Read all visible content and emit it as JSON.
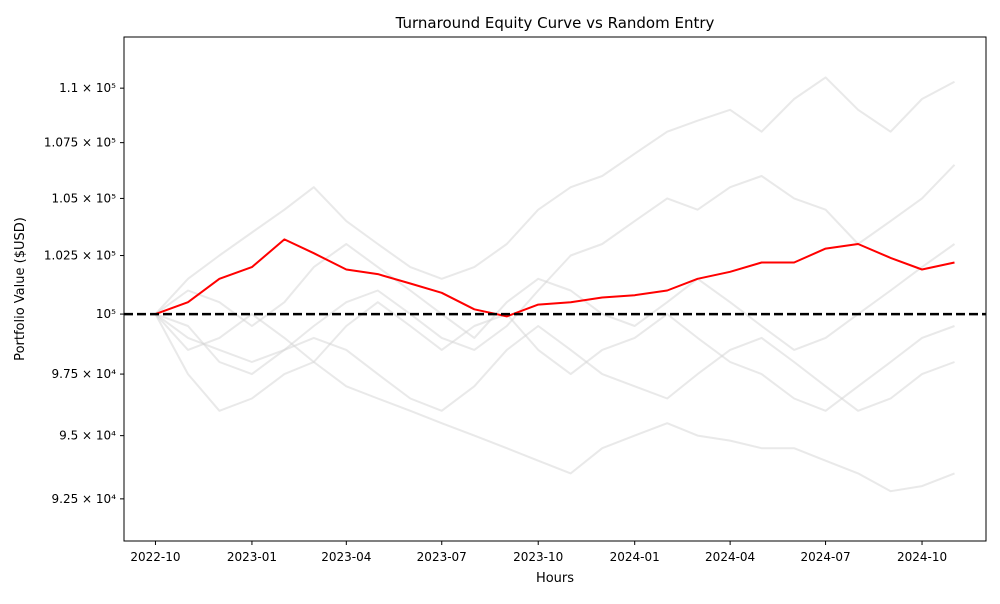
{
  "chart_data": {
    "type": "line",
    "title": "Turnaround Equity Curve vs Random Entry",
    "x_label": "Hours",
    "y_label": "Portfolio Value ($USD)",
    "y_scale": "log",
    "grid": false,
    "reference_line": 100000,
    "x": [
      "2022-10",
      "2022-11",
      "2022-12",
      "2023-01",
      "2023-02",
      "2023-03",
      "2023-04",
      "2023-05",
      "2023-06",
      "2023-07",
      "2023-08",
      "2023-09",
      "2023-10",
      "2023-11",
      "2023-12",
      "2024-01",
      "2024-02",
      "2024-03",
      "2024-04",
      "2024-05",
      "2024-06",
      "2024-07",
      "2024-08",
      "2024-09",
      "2024-10",
      "2024-11"
    ],
    "xlim": [
      "2022-09",
      "2024-12"
    ],
    "xticks": [
      "2022-10",
      "2023-01",
      "2023-04",
      "2023-07",
      "2023-10",
      "2024-01",
      "2024-04",
      "2024-07",
      "2024-10"
    ],
    "ylim": [
      90870,
      112400
    ],
    "yticks": [
      {
        "value": 92500,
        "label": "9.25 × 10⁴"
      },
      {
        "value": 95000,
        "label": "9.5 × 10⁴"
      },
      {
        "value": 97500,
        "label": "9.75 × 10⁴"
      },
      {
        "value": 100000,
        "label": "10⁵"
      },
      {
        "value": 102500,
        "label": "1.025 × 10⁵"
      },
      {
        "value": 105000,
        "label": "1.05 × 10⁵"
      },
      {
        "value": 107500,
        "label": "1.075 × 10⁵"
      },
      {
        "value": 110000,
        "label": "1.1 × 10⁵"
      }
    ],
    "series": [
      {
        "color": "#d3d3d3",
        "values": [
          100000,
          101500,
          102500,
          103500,
          104500,
          105500,
          104000,
          103000,
          102000,
          101500,
          102000,
          103000,
          104500,
          105500,
          106000,
          107000,
          108000,
          108500,
          109000,
          108000,
          109500,
          110500,
          109000,
          108000,
          109500,
          110300
        ]
      },
      {
        "color": "#d3d3d3",
        "values": [
          100000,
          97500,
          96000,
          96500,
          97500,
          98000,
          97000,
          96500,
          96000,
          95500,
          95000,
          94500,
          94000,
          93500,
          94500,
          95000,
          95500,
          95000,
          94800,
          94500,
          94500,
          94000,
          93500,
          92800,
          93000,
          93500
        ]
      },
      {
        "color": "#d3d3d3",
        "values": [
          100000,
          99000,
          98500,
          98000,
          98500,
          99500,
          100500,
          101000,
          100000,
          99000,
          98500,
          99500,
          101000,
          102500,
          103000,
          104000,
          105000,
          104500,
          105500,
          106000,
          105000,
          104500,
          103000,
          104000,
          105000,
          106500
        ]
      },
      {
        "color": "#d3d3d3",
        "values": [
          100000,
          99500,
          98000,
          97500,
          98500,
          99000,
          98500,
          97500,
          96500,
          96000,
          97000,
          98500,
          99500,
          98500,
          97500,
          97000,
          96500,
          97500,
          98500,
          99000,
          98000,
          97000,
          96000,
          96500,
          97500,
          98000
        ]
      },
      {
        "color": "#d3d3d3",
        "values": [
          100000,
          101000,
          100500,
          99500,
          100500,
          102000,
          103000,
          102000,
          101000,
          100000,
          99000,
          100500,
          101500,
          101000,
          100000,
          99500,
          100500,
          101500,
          100500,
          99500,
          98500,
          99000,
          100000,
          101000,
          102000,
          103000
        ]
      },
      {
        "color": "#d3d3d3",
        "values": [
          100000,
          98500,
          99000,
          100000,
          99000,
          98000,
          99500,
          100500,
          99500,
          98500,
          99500,
          100000,
          98500,
          97500,
          98500,
          99000,
          100000,
          99000,
          98000,
          97500,
          96500,
          96000,
          97000,
          98000,
          99000,
          99500
        ]
      },
      {
        "color": "#ff0000",
        "values": [
          100000,
          100500,
          101500,
          102000,
          103200,
          102600,
          101900,
          101700,
          101300,
          100900,
          100200,
          99900,
          100400,
          100500,
          100700,
          100800,
          101000,
          101500,
          101800,
          102200,
          102200,
          102800,
          103000,
          102400,
          101900,
          102200
        ]
      }
    ]
  }
}
